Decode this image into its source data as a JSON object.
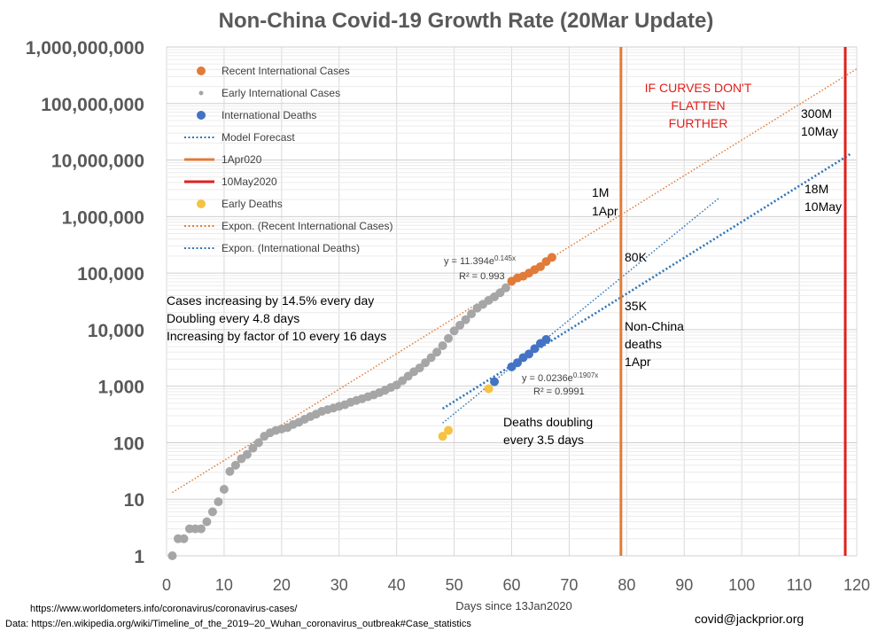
{
  "chart_data": {
    "type": "scatter",
    "title": "Non-China Covid-19 Growth Rate (20Mar Update)",
    "xlabel": "Days since 13Jan2020",
    "ylabel": "",
    "xlim": [
      0,
      120
    ],
    "ylim": [
      1,
      1000000000
    ],
    "yscale": "log",
    "x_ticks": [
      0,
      10,
      20,
      30,
      40,
      50,
      60,
      70,
      80,
      90,
      100,
      110,
      120
    ],
    "y_ticks": [
      1,
      10,
      100,
      1000,
      10000,
      100000,
      1000000,
      10000000,
      100000000,
      1000000000
    ],
    "x_tick_labels": [
      "0",
      "10",
      "20",
      "30",
      "40",
      "50",
      "60",
      "70",
      "80",
      "90",
      "100",
      "110",
      "120"
    ],
    "y_tick_labels": [
      "1",
      "10",
      "100",
      "1,000",
      "10,000",
      "100,000",
      "1,000,000",
      "10,000,000",
      "100,000,000",
      "1,000,000,000"
    ],
    "grid": true,
    "legend_position": "top-left",
    "legend": [
      {
        "label": "Recent International Cases",
        "kind": "dot",
        "color": "#e07b39"
      },
      {
        "label": "Early International Cases",
        "kind": "smalldot",
        "color": "#a6a6a6"
      },
      {
        "label": "International Deaths",
        "kind": "dot",
        "color": "#4472c4"
      },
      {
        "label": "Model Forecast",
        "kind": "dotted",
        "color": "#2e75b6"
      },
      {
        "label": "1Apr020",
        "kind": "line",
        "color": "#e07b39"
      },
      {
        "label": "10May2020",
        "kind": "line",
        "color": "#e0201b"
      },
      {
        "label": "Early Deaths",
        "kind": "dot",
        "color": "#f5c242"
      },
      {
        "label": "Expon. (Recent International Cases)",
        "kind": "dotted",
        "color": "#e07b39"
      },
      {
        "label": "Expon. (International Deaths)",
        "kind": "dotted",
        "color": "#2e75b6"
      }
    ],
    "series": [
      {
        "name": "Early International Cases",
        "color": "#a6a6a6",
        "points": [
          [
            1,
            1
          ],
          [
            2,
            2
          ],
          [
            3,
            2
          ],
          [
            4,
            3
          ],
          [
            5,
            3
          ],
          [
            6,
            3
          ],
          [
            7,
            4
          ],
          [
            8,
            6
          ],
          [
            9,
            9
          ],
          [
            10,
            15
          ],
          [
            11,
            31
          ],
          [
            12,
            40
          ],
          [
            13,
            52
          ],
          [
            14,
            62
          ],
          [
            15,
            80
          ],
          [
            16,
            100
          ],
          [
            17,
            130
          ],
          [
            18,
            150
          ],
          [
            19,
            165
          ],
          [
            20,
            175
          ],
          [
            21,
            185
          ],
          [
            22,
            210
          ],
          [
            23,
            230
          ],
          [
            24,
            260
          ],
          [
            25,
            290
          ],
          [
            26,
            320
          ],
          [
            27,
            360
          ],
          [
            28,
            385
          ],
          [
            29,
            410
          ],
          [
            30,
            440
          ],
          [
            31,
            470
          ],
          [
            32,
            520
          ],
          [
            33,
            560
          ],
          [
            34,
            600
          ],
          [
            35,
            650
          ],
          [
            36,
            700
          ],
          [
            37,
            770
          ],
          [
            38,
            850
          ],
          [
            39,
            950
          ],
          [
            40,
            1050
          ],
          [
            41,
            1250
          ],
          [
            42,
            1500
          ],
          [
            43,
            1800
          ],
          [
            44,
            2100
          ],
          [
            45,
            2600
          ],
          [
            46,
            3200
          ],
          [
            47,
            4000
          ],
          [
            48,
            5200
          ],
          [
            49,
            7000
          ],
          [
            50,
            9500
          ],
          [
            51,
            12000
          ],
          [
            52,
            15000
          ],
          [
            53,
            19000
          ],
          [
            54,
            24000
          ],
          [
            55,
            28000
          ],
          [
            56,
            33000
          ],
          [
            57,
            38000
          ],
          [
            58,
            45000
          ],
          [
            59,
            55000
          ]
        ]
      },
      {
        "name": "Recent International Cases",
        "color": "#e07b39",
        "points": [
          [
            60,
            72000
          ],
          [
            61,
            82000
          ],
          [
            62,
            88000
          ],
          [
            63,
            100000
          ],
          [
            64,
            115000
          ],
          [
            65,
            130000
          ],
          [
            66,
            160000
          ],
          [
            67,
            190000
          ]
        ]
      },
      {
        "name": "International Deaths",
        "color": "#4472c4",
        "points": [
          [
            57,
            1200
          ],
          [
            60,
            2200
          ],
          [
            61,
            2600
          ],
          [
            62,
            3200
          ],
          [
            63,
            3700
          ],
          [
            64,
            4600
          ],
          [
            65,
            5700
          ],
          [
            66,
            6700
          ]
        ]
      },
      {
        "name": "Early Deaths",
        "color": "#f5c242",
        "points": [
          [
            48,
            130
          ],
          [
            49,
            165
          ],
          [
            56,
            900
          ]
        ]
      }
    ],
    "trendlines": [
      {
        "name": "Expon. (Recent International Cases)",
        "color": "#e07b39",
        "x_start": 1,
        "x_end": 120,
        "a": 11.394,
        "b": 0.145
      },
      {
        "name": "Expon. (International Deaths)",
        "color": "#2e75b6",
        "x_start": 48,
        "x_end": 96,
        "a": 0.0236,
        "b": 0.1907
      },
      {
        "name": "Model Forecast",
        "color": "#2e75b6",
        "x_start": 48,
        "x_end": 119,
        "y_start": 400,
        "y_end": 13000000
      }
    ],
    "vlines": [
      {
        "name": "1Apr020",
        "x": 79,
        "color": "#e07b39"
      },
      {
        "name": "10May2020",
        "x": 118,
        "color": "#e0201b"
      }
    ],
    "equations": {
      "cases": {
        "line1_prefix": "y = 11.394e",
        "line1_exp": "0.145x",
        "line2": "R² = 0.993"
      },
      "deaths": {
        "line1_prefix": "y = 0.0236e",
        "line1_exp": "0.1907x",
        "line2": "R² = 0.9991"
      }
    },
    "annotations": {
      "cases_growth": [
        "Cases increasing by 14.5% every day",
        "Doubling every 4.8 days",
        "Increasing by factor of 10 every 16 days"
      ],
      "deaths_doubling": [
        "Deaths doubling",
        "every 3.5 days"
      ],
      "warning": [
        "IF CURVES DON'T",
        "FLATTEN",
        "FURTHER"
      ],
      "cases_1apr": [
        "1M",
        "1Apr"
      ],
      "deaths_80k": "80K",
      "deaths_35k": [
        "35K",
        "Non-China",
        "deaths",
        "1Apr"
      ],
      "cases_10may": [
        "300M",
        "10May"
      ],
      "deaths_10may": [
        "18M",
        "10May"
      ]
    }
  },
  "footer": {
    "source1": "https://www.worldometers.info/coronavirus/coronavirus-cases/",
    "source2": "Data: https://en.wikipedia.org/wiki/Timeline_of_the_2019–20_Wuhan_coronavirus_outbreak#Case_statistics",
    "contact": "covid@jackprior.org"
  }
}
